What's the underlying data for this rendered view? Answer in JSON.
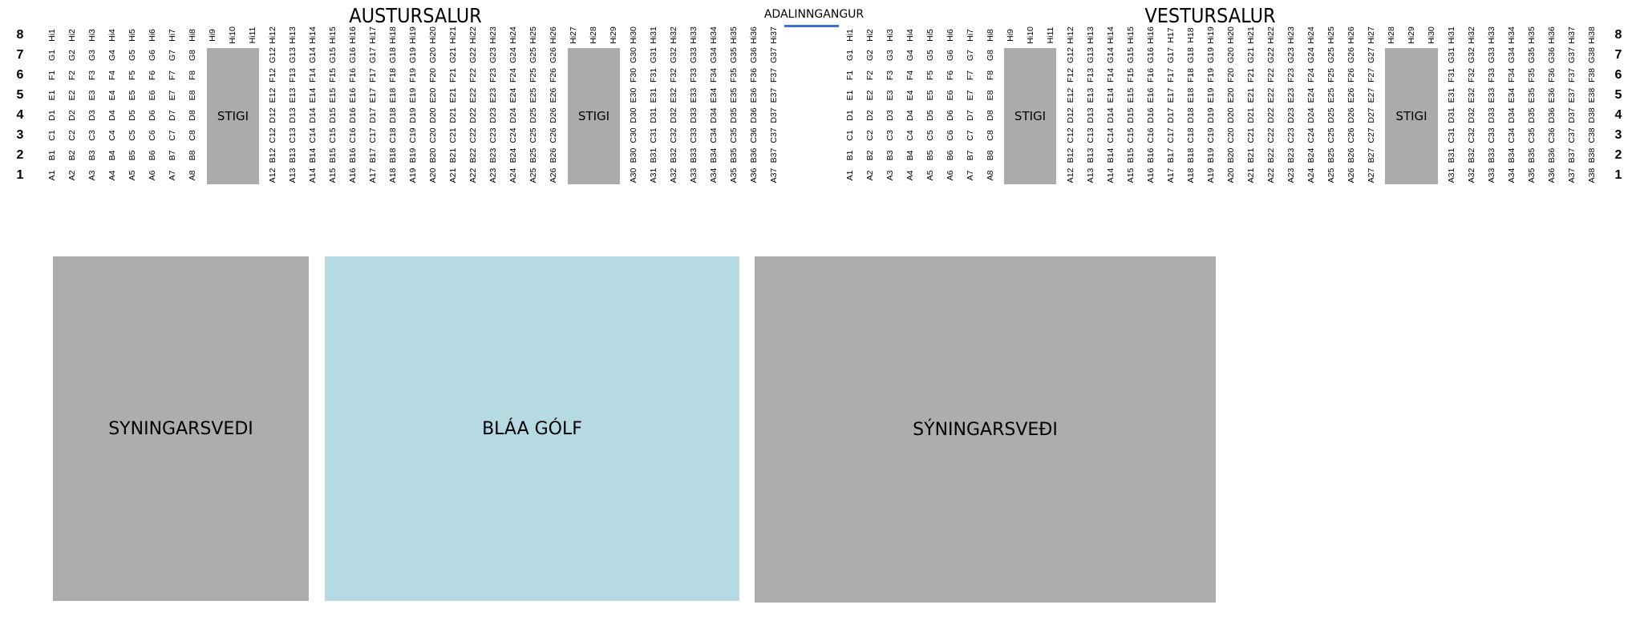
{
  "titles": {
    "east": "AUSTURSALUR",
    "west": "VESTURSALUR",
    "entrance": "ADALINNGANGUR"
  },
  "colors": {
    "stairs": "#ababab",
    "exhibition": "#adadad",
    "blue_floor": "#b5dae2",
    "entrance_line": "#3c6fd6"
  },
  "row_numbers": [
    "8",
    "7",
    "6",
    "5",
    "4",
    "3",
    "2",
    "1"
  ],
  "stairs_label": "STIGI",
  "zones": [
    {
      "label": "SYNINGARSVEDI",
      "color": "#adadad"
    },
    {
      "label": "BLÁA GÓLF",
      "color": "#b5dae2"
    },
    {
      "label": "SÝNINGARSVEÐI",
      "color": "#adadad"
    }
  ],
  "east_columns": [
    [
      "A1",
      "B1",
      "C1",
      "D1",
      "E1",
      "F1",
      "G1",
      "Hi1"
    ],
    [
      "A2",
      "B2",
      "C2",
      "D2",
      "E2",
      "F2",
      "G2",
      "Hi2"
    ],
    [
      "A3",
      "B3",
      "C3",
      "D3",
      "E3",
      "F3",
      "G3",
      "Hi3"
    ],
    [
      "A4",
      "B4",
      "C4",
      "D4",
      "E4",
      "F4",
      "G4",
      "Hi4"
    ],
    [
      "A5",
      "B5",
      "C5",
      "D5",
      "E5",
      "F5",
      "G5",
      "Hi5"
    ],
    [
      "A6",
      "B6",
      "C6",
      "D6",
      "E6",
      "F6",
      "G6",
      "Hi6"
    ],
    [
      "A7",
      "B7",
      "C7",
      "D7",
      "E7",
      "F7",
      "G7",
      "Hi7"
    ],
    [
      "A8",
      "B8",
      "C8",
      "D8",
      "E8",
      "F8",
      "G8",
      "Hi8"
    ],
    [
      "Hi9"
    ],
    [
      "Hi10"
    ],
    [
      "Hi11"
    ],
    [
      "A12",
      "B12",
      "C12",
      "D12",
      "E12",
      "F12",
      "G12",
      "Hi12"
    ],
    [
      "A13",
      "B13",
      "C13",
      "D13",
      "E13",
      "F13",
      "G13",
      "Hi13"
    ],
    [
      "A14",
      "B14",
      "C14",
      "D14",
      "E14",
      "F14",
      "G14",
      "Hi14"
    ],
    [
      "A15",
      "B15",
      "C15",
      "D15",
      "E15",
      "F15",
      "G15",
      "Hi15"
    ],
    [
      "A16",
      "B16",
      "C16",
      "D16",
      "E16",
      "F16",
      "G16",
      "Hi16"
    ],
    [
      "A17",
      "B17",
      "C17",
      "D17",
      "E17",
      "F17",
      "G17",
      "Hi17"
    ],
    [
      "A18",
      "B18",
      "C18",
      "D18",
      "E18",
      "F18",
      "G18",
      "Hi18"
    ],
    [
      "A19",
      "B19",
      "C19",
      "D19",
      "E19",
      "F19",
      "G19",
      "Hi19"
    ],
    [
      "A20",
      "B20",
      "C20",
      "D20",
      "E20",
      "F20",
      "G20",
      "Hi20"
    ],
    [
      "A21",
      "B21",
      "C21",
      "D21",
      "E21",
      "F21",
      "G21",
      "Hi21"
    ],
    [
      "A22",
      "B22",
      "C22",
      "D22",
      "E22",
      "F22",
      "G22",
      "Hi22"
    ],
    [
      "A23",
      "B23",
      "C23",
      "D23",
      "E23",
      "F23",
      "G23",
      "Hi23"
    ],
    [
      "A24",
      "B24",
      "C24",
      "D24",
      "E24",
      "F24",
      "G24",
      "Hi24"
    ],
    [
      "A25",
      "B25",
      "C25",
      "D25",
      "E25",
      "F25",
      "G25",
      "Hi25"
    ],
    [
      "A26",
      "B26",
      "C26",
      "D26",
      "E26",
      "F26",
      "G26",
      "Hi26"
    ],
    [
      "Hi27"
    ],
    [
      "Hi28"
    ],
    [
      "Hi29"
    ],
    [
      "A30",
      "B30",
      "C30",
      "D30",
      "E30",
      "F30",
      "G30",
      "Hi30"
    ],
    [
      "A31",
      "B31",
      "C31",
      "D31",
      "E31",
      "F31",
      "G31",
      "Hi31"
    ],
    [
      "A32",
      "B32",
      "C32",
      "D32",
      "E32",
      "F32",
      "G32",
      "Hi32"
    ],
    [
      "A33",
      "B33",
      "C33",
      "D33",
      "E33",
      "F33",
      "G33",
      "Hi33"
    ],
    [
      "A34",
      "B34",
      "C34",
      "D34",
      "E34",
      "F34",
      "G34",
      "Hi34"
    ],
    [
      "A35",
      "B35",
      "C35",
      "D35",
      "E35",
      "F35",
      "G35",
      "Hi35"
    ],
    [
      "A36",
      "B36",
      "C36",
      "D36",
      "E36",
      "F36",
      "G36",
      "Hi36"
    ],
    [
      "A37",
      "B37",
      "C37",
      "D37",
      "E37",
      "F37",
      "G37",
      "Hi37"
    ]
  ],
  "west_columns": [
    [
      "A1",
      "B1",
      "C1",
      "D1",
      "E1",
      "F1",
      "G1",
      "Hi1"
    ],
    [
      "A2",
      "B2",
      "C2",
      "D2",
      "E2",
      "F2",
      "G2",
      "Hi2"
    ],
    [
      "A3",
      "B3",
      "C3",
      "D3",
      "E3",
      "F3",
      "G3",
      "Hi3"
    ],
    [
      "A4",
      "B4",
      "C4",
      "D4",
      "E4",
      "F4",
      "G4",
      "Hi4"
    ],
    [
      "A5",
      "B5",
      "C5",
      "D5",
      "E5",
      "F5",
      "G5",
      "Hi5"
    ],
    [
      "A6",
      "B6",
      "C6",
      "D6",
      "E6",
      "F6",
      "G6",
      "Hi6"
    ],
    [
      "A7",
      "B7",
      "C7",
      "D7",
      "E7",
      "F7",
      "G7",
      "Hi7"
    ],
    [
      "A8",
      "B8",
      "C8",
      "D8",
      "E8",
      "F8",
      "G8",
      "Hi8"
    ],
    [
      "Hi9"
    ],
    [
      "Hi10"
    ],
    [
      "Hi11"
    ],
    [
      "A12",
      "B12",
      "C12",
      "D12",
      "E12",
      "F12",
      "G12",
      "Hi12"
    ],
    [
      "A13",
      "B13",
      "C13",
      "D13",
      "E13",
      "F13",
      "G13",
      "Hi13"
    ],
    [
      "A14",
      "B14",
      "C14",
      "D14",
      "E14",
      "F14",
      "G14",
      "Hi14"
    ],
    [
      "A15",
      "B15",
      "C15",
      "D15",
      "E15",
      "F15",
      "G15",
      "Hi15"
    ],
    [
      "A16",
      "B16",
      "C16",
      "D16",
      "E16",
      "F16",
      "G16",
      "Hi16"
    ],
    [
      "A17",
      "B17",
      "C17",
      "D17",
      "E17",
      "F17",
      "G17",
      "H17"
    ],
    [
      "A18",
      "B18",
      "C18",
      "D18",
      "E18",
      "F18",
      "G18",
      "H18"
    ],
    [
      "A19",
      "B19",
      "C19",
      "D19",
      "E19",
      "F19",
      "G19",
      "Hi19"
    ],
    [
      "A20",
      "B20",
      "C20",
      "D20",
      "E20",
      "F20",
      "G20",
      "Hi20"
    ],
    [
      "A21",
      "B21",
      "C21",
      "D21",
      "E21",
      "F21",
      "G21",
      "Hi21"
    ],
    [
      "A22",
      "B22",
      "C22",
      "D22",
      "E22",
      "F22",
      "G22",
      "Hi22"
    ],
    [
      "A23",
      "B23",
      "C23",
      "D23",
      "E23",
      "F23",
      "G23",
      "Hi23"
    ],
    [
      "A24",
      "B24",
      "C24",
      "D24",
      "E24",
      "F24",
      "G24",
      "Hi24"
    ],
    [
      "A25",
      "B25",
      "C25",
      "D25",
      "E25",
      "F25",
      "G25",
      "Hi25"
    ],
    [
      "A26",
      "B26",
      "C26",
      "D26",
      "E26",
      "F26",
      "G26",
      "Hi26"
    ],
    [
      "A27",
      "B27",
      "C27",
      "D27",
      "E27",
      "F27",
      "G27",
      "Hi27"
    ],
    [
      "Hi28"
    ],
    [
      "Hi29"
    ],
    [
      "Hi30"
    ],
    [
      "A31",
      "B31",
      "C31",
      "D31",
      "E31",
      "F31",
      "G31",
      "Hi31"
    ],
    [
      "A32",
      "B32",
      "C32",
      "D32",
      "E32",
      "F32",
      "G32",
      "Hi32"
    ],
    [
      "A33",
      "B33",
      "C33",
      "D33",
      "E33",
      "F33",
      "G33",
      "Hi33"
    ],
    [
      "A34",
      "B34",
      "C34",
      "D34",
      "E34",
      "F34",
      "G34",
      "Hi34"
    ],
    [
      "A35",
      "B35",
      "C35",
      "D35",
      "E35",
      "F35",
      "G35",
      "Hi35"
    ],
    [
      "A36",
      "B36",
      "C36",
      "D36",
      "E36",
      "F36",
      "G36",
      "Hi36"
    ],
    [
      "A37",
      "B37",
      "C37",
      "D37",
      "E37",
      "F37",
      "G37",
      "Hi37"
    ],
    [
      "A38",
      "B38",
      "C38",
      "D38",
      "E38",
      "F38",
      "G38",
      "Hi38"
    ]
  ]
}
